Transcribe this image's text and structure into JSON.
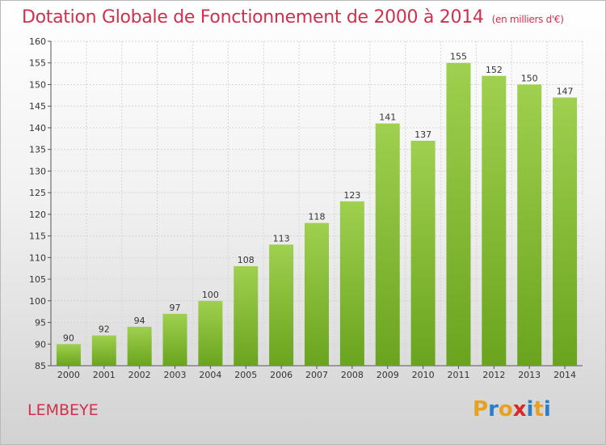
{
  "header": {
    "title": "Dotation Globale de Fonctionnement de 2000 à 2014",
    "unit": "(en milliers d'€)"
  },
  "footer": {
    "commune": "LEMBEYE",
    "logo_letters": [
      "P",
      "r",
      "o",
      "x",
      "i",
      "t",
      "i"
    ],
    "logo_colors": [
      "#e8a020",
      "#2a7ec8",
      "#e8a020",
      "#d82828",
      "#2a7ec8",
      "#e8a020",
      "#2a7ec8"
    ]
  },
  "colors": {
    "bar_light": "#9fd04f",
    "bar_dark": "#6aa41e",
    "title": "#d0304e"
  },
  "chart_data": {
    "type": "bar",
    "categories": [
      "2000",
      "2001",
      "2002",
      "2003",
      "2004",
      "2005",
      "2006",
      "2007",
      "2008",
      "2009",
      "2010",
      "2011",
      "2012",
      "2013",
      "2014"
    ],
    "values": [
      90,
      92,
      94,
      97,
      100,
      108,
      113,
      118,
      123,
      141,
      137,
      155,
      152,
      150,
      147
    ],
    "title": "Dotation Globale de Fonctionnement de 2000 à 2014",
    "subtitle": "(en milliers d'€)",
    "ylim": [
      85,
      160
    ],
    "yticks": [
      85,
      90,
      95,
      100,
      105,
      110,
      115,
      120,
      125,
      130,
      135,
      140,
      145,
      150,
      155,
      160
    ],
    "grid": true,
    "xlabel": "",
    "ylabel": ""
  }
}
